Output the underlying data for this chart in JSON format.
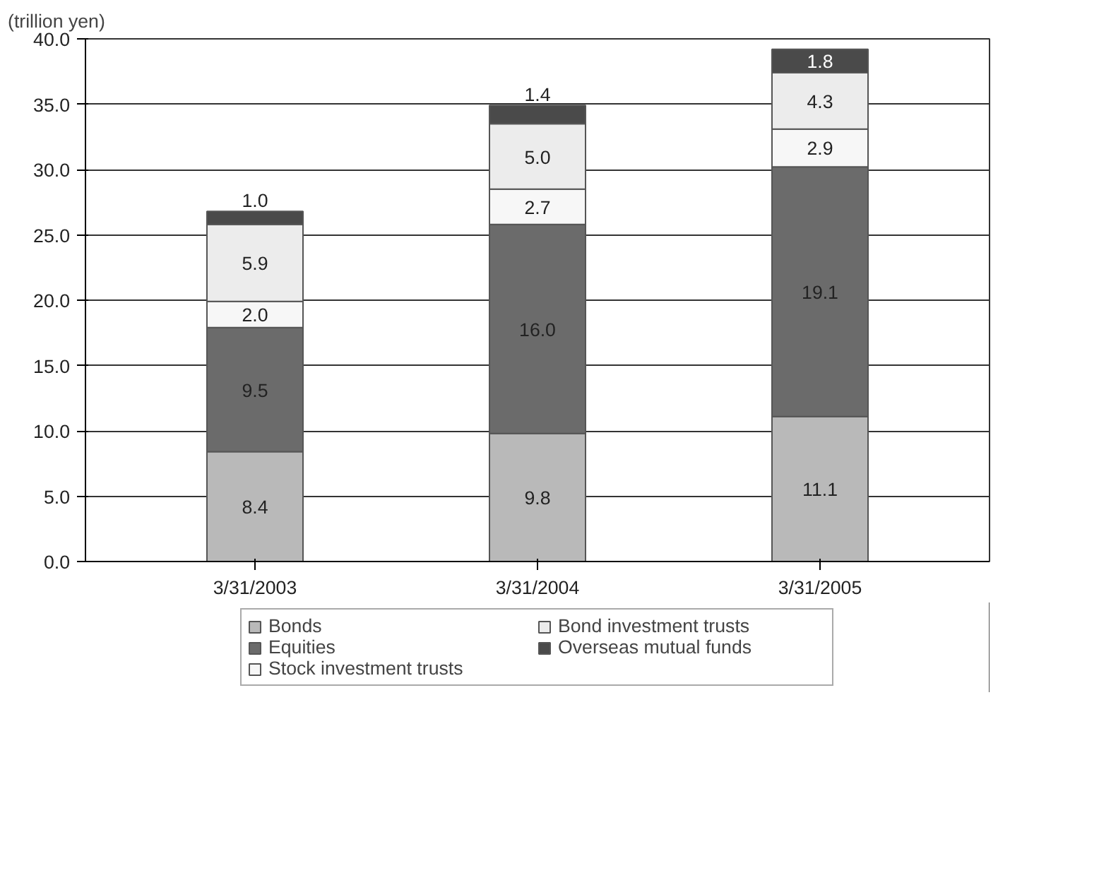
{
  "chart_data": {
    "type": "bar",
    "stacked": true,
    "ylabel": "(trillion yen)",
    "categories": [
      "3/31/2003",
      "3/31/2004",
      "3/31/2005"
    ],
    "series": [
      {
        "name": "Bonds",
        "color": "#b9b9b9",
        "values": [
          8.4,
          9.8,
          11.1
        ],
        "value_labels": [
          "8.4",
          "9.8",
          "11.1"
        ]
      },
      {
        "name": "Equities",
        "color": "#6b6b6b",
        "values": [
          9.5,
          16.0,
          19.1
        ],
        "value_labels": [
          "9.5",
          "16.0",
          "19.1"
        ]
      },
      {
        "name": "Stock investment trusts",
        "color": "#f7f7f7",
        "values": [
          2.0,
          2.7,
          2.9
        ],
        "value_labels": [
          "2.0",
          "2.7",
          "2.9"
        ]
      },
      {
        "name": "Bond investment trusts",
        "color": "#ececec",
        "values": [
          5.9,
          5.0,
          4.3
        ],
        "value_labels": [
          "5.9",
          "5.0",
          "4.3"
        ]
      },
      {
        "name": "Overseas mutual funds",
        "color": "#4a4a4a",
        "values": [
          1.0,
          1.4,
          1.8
        ],
        "value_labels": [
          "1.0",
          "1.4",
          "1.8"
        ]
      }
    ],
    "ylim": [
      0,
      40
    ],
    "yticks": [
      {
        "value": 0,
        "label": "0.0"
      },
      {
        "value": 5,
        "label": "5.0"
      },
      {
        "value": 10,
        "label": "10.0"
      },
      {
        "value": 15,
        "label": "15.0"
      },
      {
        "value": 20,
        "label": "20.0"
      },
      {
        "value": 25,
        "label": "25.0"
      },
      {
        "value": 30,
        "label": "30.0"
      },
      {
        "value": 35,
        "label": "35.0"
      },
      {
        "value": 40,
        "label": "40.0"
      }
    ],
    "grid": "y",
    "legend": "bottom"
  }
}
